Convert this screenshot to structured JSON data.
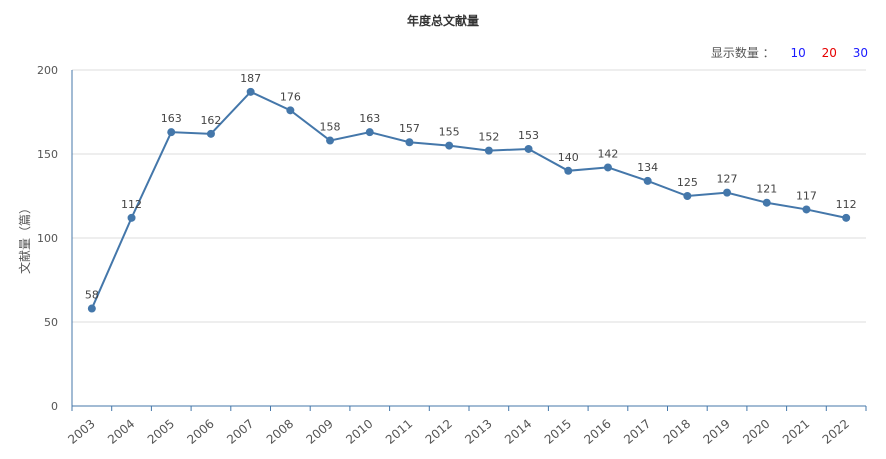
{
  "title": "年度总文献量",
  "display_count": {
    "label": "显示数量 ：",
    "options": [
      {
        "label": "10",
        "color": "#1a1aff"
      },
      {
        "label": "20",
        "color": "#e60000"
      },
      {
        "label": "30",
        "color": "#1a1aff"
      }
    ]
  },
  "colors": {
    "line": "#4477aa",
    "axis": "#4477aa",
    "grid": "#dddddd",
    "text": "#555555"
  },
  "chart_data": {
    "type": "line",
    "title": "年度总文献量",
    "xlabel": "",
    "ylabel": "文献量（篇）",
    "ylim": [
      0,
      200
    ],
    "yticks": [
      0,
      50,
      100,
      150,
      200
    ],
    "grid": true,
    "x": [
      "2003",
      "2004",
      "2005",
      "2006",
      "2007",
      "2008",
      "2009",
      "2010",
      "2011",
      "2012",
      "2013",
      "2014",
      "2015",
      "2016",
      "2017",
      "2018",
      "2019",
      "2020",
      "2021",
      "2022"
    ],
    "values": [
      58,
      112,
      163,
      162,
      187,
      176,
      158,
      163,
      157,
      155,
      152,
      153,
      140,
      142,
      134,
      125,
      127,
      121,
      117,
      112
    ]
  }
}
